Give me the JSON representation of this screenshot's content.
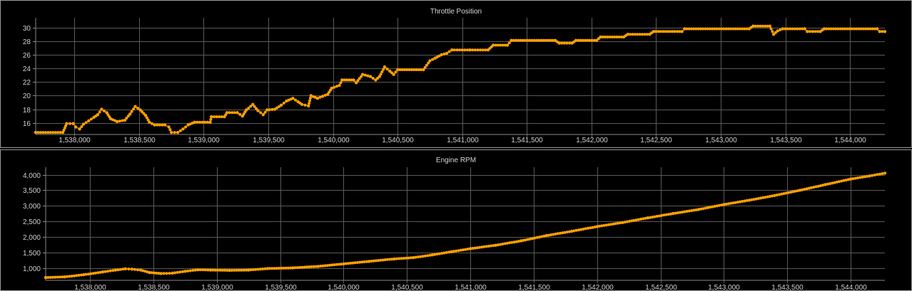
{
  "colors": {
    "background": "#000000",
    "grid": "#5a5a5a",
    "series": "#ffa000",
    "text": "#d0d0d0"
  },
  "chart_data": [
    {
      "type": "scatter",
      "title": "Throttle Position",
      "xlim": [
        1537700,
        1544270
      ],
      "ylim": [
        14.3,
        31
      ],
      "xticks": [
        1538000,
        1538500,
        1539000,
        1539500,
        1540000,
        1540500,
        1541000,
        1541500,
        1542000,
        1542500,
        1543000,
        1543500,
        1544000
      ],
      "xtick_labels": [
        "1,538,000",
        "1,538,500",
        "1,539,000",
        "1,539,500",
        "1,540,000",
        "1,540,500",
        "1,541,000",
        "1,541,500",
        "1,542,000",
        "1,542,500",
        "1,543,000",
        "1,543,500",
        "1,544,000"
      ],
      "yticks": [
        16,
        18,
        20,
        22,
        24,
        26,
        28,
        30
      ],
      "ytick_labels": [
        "16",
        "18",
        "20",
        "22",
        "24",
        "26",
        "28",
        "30"
      ],
      "grid": true,
      "series": [
        {
          "color": "#ffa000",
          "points": [
            [
              1537700,
              14.6
            ],
            [
              1537910,
              14.6
            ],
            [
              1537940,
              15.9
            ],
            [
              1537990,
              15.9
            ],
            [
              1538010,
              15.4
            ],
            [
              1538040,
              15.1
            ],
            [
              1538070,
              15.8
            ],
            [
              1538110,
              16.3
            ],
            [
              1538150,
              16.8
            ],
            [
              1538180,
              17.2
            ],
            [
              1538210,
              18.0
            ],
            [
              1538250,
              17.5
            ],
            [
              1538280,
              16.6
            ],
            [
              1538330,
              16.2
            ],
            [
              1538390,
              16.4
            ],
            [
              1538430,
              17.3
            ],
            [
              1538470,
              18.4
            ],
            [
              1538510,
              17.9
            ],
            [
              1538550,
              17.1
            ],
            [
              1538580,
              16.1
            ],
            [
              1538620,
              15.7
            ],
            [
              1538700,
              15.7
            ],
            [
              1538730,
              15.4
            ],
            [
              1538750,
              14.6
            ],
            [
              1538800,
              14.6
            ],
            [
              1538840,
              15.1
            ],
            [
              1538880,
              15.7
            ],
            [
              1538930,
              16.1
            ],
            [
              1539050,
              16.1
            ],
            [
              1539060,
              16.9
            ],
            [
              1539160,
              16.9
            ],
            [
              1539180,
              17.5
            ],
            [
              1539260,
              17.5
            ],
            [
              1539300,
              17.0
            ],
            [
              1539330,
              17.9
            ],
            [
              1539380,
              18.7
            ],
            [
              1539420,
              17.8
            ],
            [
              1539460,
              17.2
            ],
            [
              1539490,
              17.9
            ],
            [
              1539550,
              18.0
            ],
            [
              1539600,
              18.6
            ],
            [
              1539640,
              19.2
            ],
            [
              1539690,
              19.6
            ],
            [
              1539730,
              19.1
            ],
            [
              1539760,
              18.7
            ],
            [
              1539810,
              18.5
            ],
            [
              1539830,
              20.0
            ],
            [
              1539880,
              19.6
            ],
            [
              1539920,
              19.9
            ],
            [
              1539960,
              20.2
            ],
            [
              1539990,
              21.1
            ],
            [
              1540050,
              21.5
            ],
            [
              1540070,
              22.3
            ],
            [
              1540160,
              22.3
            ],
            [
              1540180,
              21.9
            ],
            [
              1540230,
              23.1
            ],
            [
              1540290,
              22.8
            ],
            [
              1540330,
              22.3
            ],
            [
              1540360,
              22.8
            ],
            [
              1540400,
              24.2
            ],
            [
              1540440,
              23.6
            ],
            [
              1540470,
              23.1
            ],
            [
              1540500,
              23.8
            ],
            [
              1540700,
              23.8
            ],
            [
              1540750,
              25.1
            ],
            [
              1540790,
              25.5
            ],
            [
              1540840,
              26.0
            ],
            [
              1540880,
              26.2
            ],
            [
              1540920,
              26.7
            ],
            [
              1541060,
              26.7
            ],
            [
              1541200,
              26.7
            ],
            [
              1541240,
              27.4
            ],
            [
              1541350,
              27.4
            ],
            [
              1541380,
              28.1
            ],
            [
              1541720,
              28.1
            ],
            [
              1541750,
              27.7
            ],
            [
              1541850,
              27.7
            ],
            [
              1541880,
              28.1
            ],
            [
              1542040,
              28.1
            ],
            [
              1542070,
              28.6
            ],
            [
              1542250,
              28.6
            ],
            [
              1542280,
              29.0
            ],
            [
              1542450,
              29.0
            ],
            [
              1542480,
              29.4
            ],
            [
              1542700,
              29.4
            ],
            [
              1542720,
              29.8
            ],
            [
              1543220,
              29.8
            ],
            [
              1543250,
              30.2
            ],
            [
              1543380,
              30.2
            ],
            [
              1543410,
              29.0
            ],
            [
              1543440,
              29.5
            ],
            [
              1543480,
              29.8
            ],
            [
              1543650,
              29.8
            ],
            [
              1543670,
              29.4
            ],
            [
              1543770,
              29.4
            ],
            [
              1543800,
              29.8
            ],
            [
              1544210,
              29.8
            ],
            [
              1544230,
              29.4
            ],
            [
              1544270,
              29.4
            ]
          ]
        }
      ]
    },
    {
      "type": "scatter",
      "title": "Engine RPM",
      "xlim": [
        1537650,
        1544270
      ],
      "ylim": [
        600,
        4150
      ],
      "xticks": [
        1538000,
        1538500,
        1539000,
        1539500,
        1540000,
        1540500,
        1541000,
        1541500,
        1542000,
        1542500,
        1543000,
        1543500,
        1544000
      ],
      "xtick_labels": [
        "1,538,000",
        "1,538,500",
        "1,539,000",
        "1,539,500",
        "1,540,000",
        "1,540,500",
        "1,541,000",
        "1,541,500",
        "1,542,000",
        "1,542,500",
        "1,543,000",
        "1,543,500",
        "1,544,000"
      ],
      "yticks": [
        1000,
        1500,
        2000,
        2500,
        3000,
        3500,
        4000
      ],
      "ytick_labels": [
        "1,000",
        "1,500",
        "2,000",
        "2,500",
        "3,000",
        "3,500",
        "4,000"
      ],
      "grid": true,
      "series": [
        {
          "color": "#ffa000",
          "points": [
            [
              1537650,
              690
            ],
            [
              1537800,
              710
            ],
            [
              1537950,
              780
            ],
            [
              1538100,
              870
            ],
            [
              1538200,
              930
            ],
            [
              1538280,
              970
            ],
            [
              1538330,
              960
            ],
            [
              1538400,
              930
            ],
            [
              1538470,
              850
            ],
            [
              1538560,
              820
            ],
            [
              1538650,
              830
            ],
            [
              1538750,
              890
            ],
            [
              1538850,
              940
            ],
            [
              1538950,
              930
            ],
            [
              1539100,
              920
            ],
            [
              1539250,
              930
            ],
            [
              1539400,
              980
            ],
            [
              1539600,
              1000
            ],
            [
              1539800,
              1050
            ],
            [
              1540000,
              1130
            ],
            [
              1540200,
              1210
            ],
            [
              1540400,
              1290
            ],
            [
              1540550,
              1330
            ],
            [
              1540700,
              1420
            ],
            [
              1540850,
              1520
            ],
            [
              1541000,
              1620
            ],
            [
              1541200,
              1730
            ],
            [
              1541400,
              1870
            ],
            [
              1541600,
              2040
            ],
            [
              1541800,
              2180
            ],
            [
              1542000,
              2330
            ],
            [
              1542200,
              2460
            ],
            [
              1542400,
              2610
            ],
            [
              1542600,
              2750
            ],
            [
              1542800,
              2880
            ],
            [
              1543000,
              3040
            ],
            [
              1543200,
              3180
            ],
            [
              1543400,
              3330
            ],
            [
              1543600,
              3500
            ],
            [
              1543800,
              3680
            ],
            [
              1544000,
              3860
            ],
            [
              1544150,
              3960
            ],
            [
              1544270,
              4050
            ]
          ]
        }
      ]
    }
  ]
}
